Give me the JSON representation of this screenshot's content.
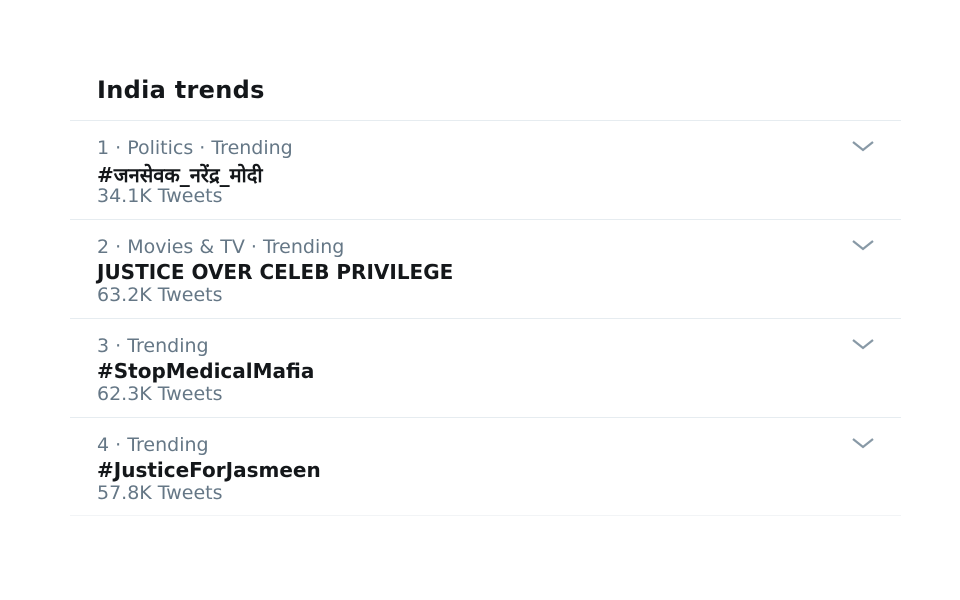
{
  "header": {
    "title": "India trends"
  },
  "trends": [
    {
      "meta": "1 · Politics · Trending",
      "name": "#जनसेवक_नरेंद्र_मोदी",
      "count": "34.1K Tweets"
    },
    {
      "meta": "2 · Movies & TV · Trending",
      "name": "JUSTICE OVER CELEB PRIVILEGE",
      "count": "63.2K Tweets"
    },
    {
      "meta": "3 · Trending",
      "name": "#StopMedicalMafia",
      "count": "62.3K Tweets"
    },
    {
      "meta": "4 · Trending",
      "name": "#JusticeForJasmeen",
      "count": "57.8K Tweets"
    }
  ],
  "icons": {
    "more": "chevron-down-icon"
  },
  "colors": {
    "text": "#14171a",
    "secondary": "#657786",
    "divider": "#e6ecf0"
  }
}
